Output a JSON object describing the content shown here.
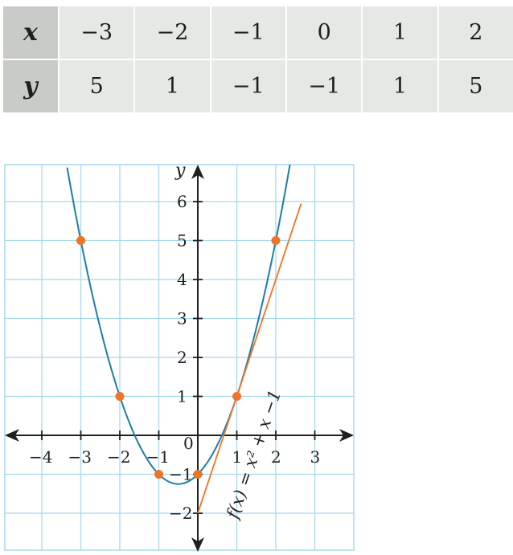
{
  "table": {
    "x_header": "x",
    "y_header": "y",
    "x_values": [
      "−3",
      "−2",
      "−1",
      "0",
      "1",
      "2"
    ],
    "y_values": [
      "5",
      "1",
      "−1",
      "−1",
      "1",
      "5"
    ]
  },
  "chart_data": {
    "type": "line",
    "function_label": "f(x) = x² + x −1",
    "xlabel": "",
    "ylabel": "y",
    "xlim": [
      -5,
      4
    ],
    "ylim": [
      -3,
      7
    ],
    "x_ticks": [
      -4,
      -3,
      -2,
      -1,
      1,
      2,
      3
    ],
    "x_tick_labels": [
      "−4",
      "−3",
      "−2",
      "−1",
      "1",
      "2",
      "3"
    ],
    "y_ticks": [
      -2,
      -1,
      1,
      2,
      3,
      4,
      5,
      6
    ],
    "y_tick_labels": [
      "−2",
      "−1",
      "1",
      "2",
      "3",
      "4",
      "5",
      "6"
    ],
    "origin_label": "0",
    "grid": true,
    "series": [
      {
        "kind": "curve",
        "equation": "x^2 + x - 1",
        "coefficients": [
          1,
          1,
          -1
        ],
        "x_range": [
          -3.35,
          2.4
        ],
        "color": "#1b7ea6"
      },
      {
        "kind": "tangent",
        "equation": "3x - 2",
        "slope": 3,
        "intercept": -2,
        "x_range": [
          0,
          2.65
        ],
        "color": "#ee7426"
      }
    ],
    "points": [
      {
        "x": -3,
        "y": 5
      },
      {
        "x": -2,
        "y": 1
      },
      {
        "x": -1,
        "y": -1
      },
      {
        "x": 0,
        "y": -1
      },
      {
        "x": 1,
        "y": 1
      },
      {
        "x": 2,
        "y": 5
      }
    ],
    "colors": {
      "grid": "#a8d8ea",
      "curve": "#1b7ea6",
      "tangent": "#ee7426",
      "points": "#ee7426",
      "axes": "#1f1f1f"
    }
  }
}
